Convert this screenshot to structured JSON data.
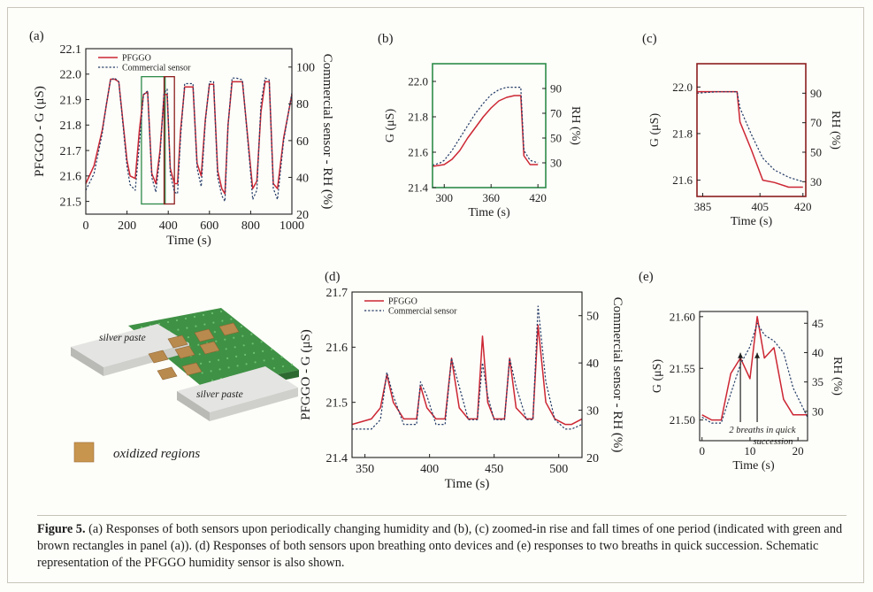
{
  "caption": {
    "label": "Figure 5.",
    "text": "(a) Responses of both sensors upon periodically changing humidity and (b), (c) zoomed-in rise and fall times of one period (indicated with green and brown rectangles in panel (a)). (d) Responses of both sensors upon breathing onto devices and (e) responses to two breaths in quick succession. Schematic representation of the PFGGO humidity sensor is also shown."
  },
  "colors": {
    "pfggo": "#cc2633",
    "commercial": "#223a66",
    "frame_b": "#2e8b4a",
    "frame_c": "#8b1e1e",
    "axis": "#1e1e1e"
  },
  "schematic": {
    "labels": [
      "silver paste",
      "silver paste"
    ],
    "legend_label": "oxidized regions"
  },
  "chart_data": [
    {
      "id": "a",
      "type": "line",
      "panel_label": "(a)",
      "xlabel": "Time (s)",
      "ylabel": "PFGGO - G (μS)",
      "y2label": "Commercial sensor - RH (%)",
      "xlim": [
        0,
        1000
      ],
      "ylim": [
        21.45,
        22.1
      ],
      "y2lim": [
        20,
        110
      ],
      "xticks": [
        0,
        200,
        400,
        600,
        800,
        1000
      ],
      "yticks": [
        21.5,
        21.6,
        21.7,
        21.8,
        21.9,
        22.0,
        22.1
      ],
      "y2ticks": [
        20,
        40,
        60,
        80,
        100
      ],
      "legend": [
        "PFGGO",
        "Commercial sensor"
      ],
      "highlights": [
        {
          "color": "frame_b",
          "x": [
            270,
            385
          ],
          "y": [
            21.49,
            21.99
          ]
        },
        {
          "color": "frame_c",
          "x": [
            380,
            430
          ],
          "y": [
            21.49,
            21.99
          ]
        }
      ],
      "series": [
        {
          "name": "PFGGO",
          "color": "pfggo",
          "axis": "left",
          "x": [
            0,
            40,
            80,
            100,
            120,
            140,
            160,
            200,
            215,
            240,
            260,
            280,
            300,
            320,
            340,
            360,
            380,
            395,
            410,
            430,
            445,
            460,
            480,
            520,
            540,
            560,
            580,
            600,
            620,
            640,
            660,
            675,
            690,
            710,
            730,
            760,
            800,
            810,
            830,
            850,
            870,
            890,
            910,
            930,
            960,
            1000
          ],
          "y": [
            21.57,
            21.64,
            21.78,
            21.88,
            21.98,
            21.98,
            21.97,
            21.66,
            21.6,
            21.59,
            21.78,
            21.92,
            21.93,
            21.61,
            21.57,
            21.7,
            21.92,
            21.92,
            21.63,
            21.57,
            21.57,
            21.78,
            21.95,
            21.95,
            21.65,
            21.6,
            21.82,
            21.96,
            21.96,
            21.62,
            21.55,
            21.53,
            21.8,
            21.97,
            21.97,
            21.97,
            21.63,
            21.55,
            21.58,
            21.85,
            21.97,
            21.97,
            21.57,
            21.55,
            21.75,
            21.92
          ]
        },
        {
          "name": "Commercial sensor",
          "color": "commercial",
          "axis": "right",
          "style": "dotted",
          "x": [
            0,
            40,
            80,
            100,
            120,
            140,
            160,
            200,
            215,
            240,
            260,
            280,
            300,
            320,
            340,
            360,
            380,
            395,
            410,
            430,
            445,
            460,
            480,
            520,
            540,
            560,
            580,
            600,
            620,
            640,
            660,
            675,
            690,
            710,
            730,
            760,
            800,
            810,
            830,
            850,
            870,
            890,
            910,
            930,
            960,
            1000
          ],
          "y": [
            33,
            42,
            64,
            80,
            93,
            94,
            92,
            46,
            36,
            33,
            58,
            85,
            87,
            40,
            32,
            52,
            86,
            88,
            42,
            32,
            31,
            62,
            91,
            91,
            45,
            35,
            70,
            92,
            92,
            40,
            30,
            27,
            68,
            94,
            94,
            93,
            42,
            28,
            33,
            80,
            94,
            93,
            34,
            28,
            60,
            86
          ]
        }
      ]
    },
    {
      "id": "b",
      "type": "line",
      "panel_label": "(b)",
      "xlabel": "Time (s)",
      "ylabel": "G (μS)",
      "y2label": "RH (%)",
      "xlim": [
        285,
        430
      ],
      "ylim": [
        21.4,
        22.1
      ],
      "y2lim": [
        10,
        110
      ],
      "xticks": [
        300,
        360,
        420
      ],
      "yticks": [
        21.4,
        21.6,
        21.8,
        22.0
      ],
      "y2ticks": [
        30,
        50,
        70,
        90
      ],
      "frame_color": "frame_b",
      "series": [
        {
          "name": "PFGGO",
          "color": "pfggo",
          "axis": "left",
          "x": [
            285,
            300,
            310,
            320,
            330,
            340,
            350,
            360,
            370,
            380,
            390,
            398,
            402,
            410,
            420
          ],
          "y": [
            21.52,
            21.53,
            21.56,
            21.61,
            21.68,
            21.74,
            21.8,
            21.85,
            21.89,
            21.91,
            21.92,
            21.92,
            21.58,
            21.53,
            21.53
          ]
        },
        {
          "name": "Commercial sensor",
          "color": "commercial",
          "axis": "right",
          "style": "dotted",
          "x": [
            285,
            295,
            300,
            310,
            320,
            330,
            340,
            350,
            360,
            370,
            380,
            390,
            398,
            402,
            410,
            420
          ],
          "y": [
            28,
            30,
            32,
            40,
            50,
            60,
            70,
            78,
            85,
            89,
            91,
            91,
            91,
            40,
            32,
            30
          ]
        }
      ]
    },
    {
      "id": "c",
      "type": "line",
      "panel_label": "(c)",
      "xlabel": "Time (s)",
      "ylabel": "G (μS)",
      "y2label": "RH (%)",
      "xlim": [
        383,
        421
      ],
      "ylim": [
        21.53,
        22.1
      ],
      "y2lim": [
        20,
        110
      ],
      "xticks": [
        385,
        405,
        420
      ],
      "yticks": [
        21.6,
        21.8,
        22.0
      ],
      "y2ticks": [
        30,
        50,
        70,
        90
      ],
      "frame_color": "frame_c",
      "series": [
        {
          "name": "PFGGO",
          "color": "pfggo",
          "axis": "left",
          "x": [
            383,
            390,
            395,
            397,
            398,
            402,
            406,
            410,
            415,
            420
          ],
          "y": [
            21.98,
            21.98,
            21.98,
            21.98,
            21.85,
            21.73,
            21.6,
            21.59,
            21.57,
            21.57
          ]
        },
        {
          "name": "Commercial sensor",
          "color": "commercial",
          "axis": "right",
          "style": "dotted",
          "x": [
            383,
            390,
            395,
            397,
            398,
            402,
            406,
            410,
            415,
            420
          ],
          "y": [
            90,
            91,
            91,
            91,
            80,
            62,
            46,
            38,
            33,
            30
          ]
        }
      ]
    },
    {
      "id": "d",
      "type": "line",
      "panel_label": "(d)",
      "xlabel": "Time (s)",
      "ylabel": "PFGGO - G (μS)",
      "y2label": "Commercial sensor - RH (%)",
      "xlim": [
        340,
        518
      ],
      "ylim": [
        21.4,
        21.7
      ],
      "y2lim": [
        20,
        55
      ],
      "xticks": [
        350,
        400,
        450,
        500
      ],
      "yticks": [
        21.4,
        21.5,
        21.6,
        21.7
      ],
      "y2ticks": [
        20,
        30,
        40,
        50
      ],
      "legend": [
        "PFGGO",
        "Commercial sensor"
      ],
      "series": [
        {
          "name": "PFGGO",
          "color": "pfggo",
          "axis": "left",
          "x": [
            340,
            355,
            362,
            367,
            372,
            380,
            390,
            393,
            398,
            405,
            412,
            417,
            423,
            430,
            437,
            441,
            445,
            450,
            458,
            462,
            467,
            475,
            480,
            484,
            490,
            497,
            505,
            510,
            518
          ],
          "y": [
            21.46,
            21.47,
            21.49,
            21.55,
            21.5,
            21.47,
            21.47,
            21.53,
            21.49,
            21.47,
            21.47,
            21.58,
            21.49,
            21.47,
            21.47,
            21.62,
            21.5,
            21.47,
            21.47,
            21.58,
            21.49,
            21.47,
            21.47,
            21.64,
            21.5,
            21.47,
            21.46,
            21.46,
            21.47
          ]
        },
        {
          "name": "Commercial sensor",
          "color": "commercial",
          "axis": "right",
          "style": "dotted",
          "x": [
            340,
            355,
            362,
            367,
            372,
            380,
            390,
            393,
            398,
            405,
            412,
            417,
            423,
            430,
            437,
            441,
            445,
            450,
            458,
            462,
            467,
            475,
            480,
            484,
            490,
            497,
            505,
            510,
            518
          ],
          "y": [
            26,
            26,
            28,
            38,
            33,
            27,
            27,
            36,
            33,
            27,
            27,
            41,
            35,
            28,
            28,
            40,
            33,
            28,
            28,
            41,
            35,
            28,
            28,
            52,
            36,
            28,
            26,
            26,
            27
          ]
        }
      ]
    },
    {
      "id": "e",
      "type": "line",
      "panel_label": "(e)",
      "xlabel": "Time (s)",
      "ylabel": "G (μS)",
      "y2label": "RH (%)",
      "xlim": [
        -0.5,
        22
      ],
      "ylim": [
        21.48,
        21.605
      ],
      "y2lim": [
        25,
        47
      ],
      "xticks": [
        0,
        10,
        20
      ],
      "yticks": [
        21.5,
        21.55,
        21.6
      ],
      "y2ticks": [
        30,
        35,
        40,
        45
      ],
      "annotation": "2 breaths in quick succession",
      "arrows_x": [
        8,
        11.5
      ],
      "series": [
        {
          "name": "PFGGO",
          "color": "pfggo",
          "axis": "left",
          "x": [
            0,
            2,
            4,
            6,
            8,
            10,
            11.5,
            13,
            15,
            17,
            19,
            22
          ],
          "y": [
            21.505,
            21.5,
            21.5,
            21.545,
            21.56,
            21.54,
            21.6,
            21.56,
            21.57,
            21.52,
            21.505,
            21.505
          ]
        },
        {
          "name": "Commercial sensor",
          "color": "commercial",
          "axis": "right",
          "style": "dotted",
          "x": [
            0,
            2,
            4,
            6,
            8,
            10,
            11.5,
            13,
            15,
            17,
            19,
            22
          ],
          "y": [
            29,
            28,
            28,
            33,
            38,
            41,
            45,
            43,
            42,
            40,
            34,
            29
          ]
        }
      ]
    }
  ]
}
